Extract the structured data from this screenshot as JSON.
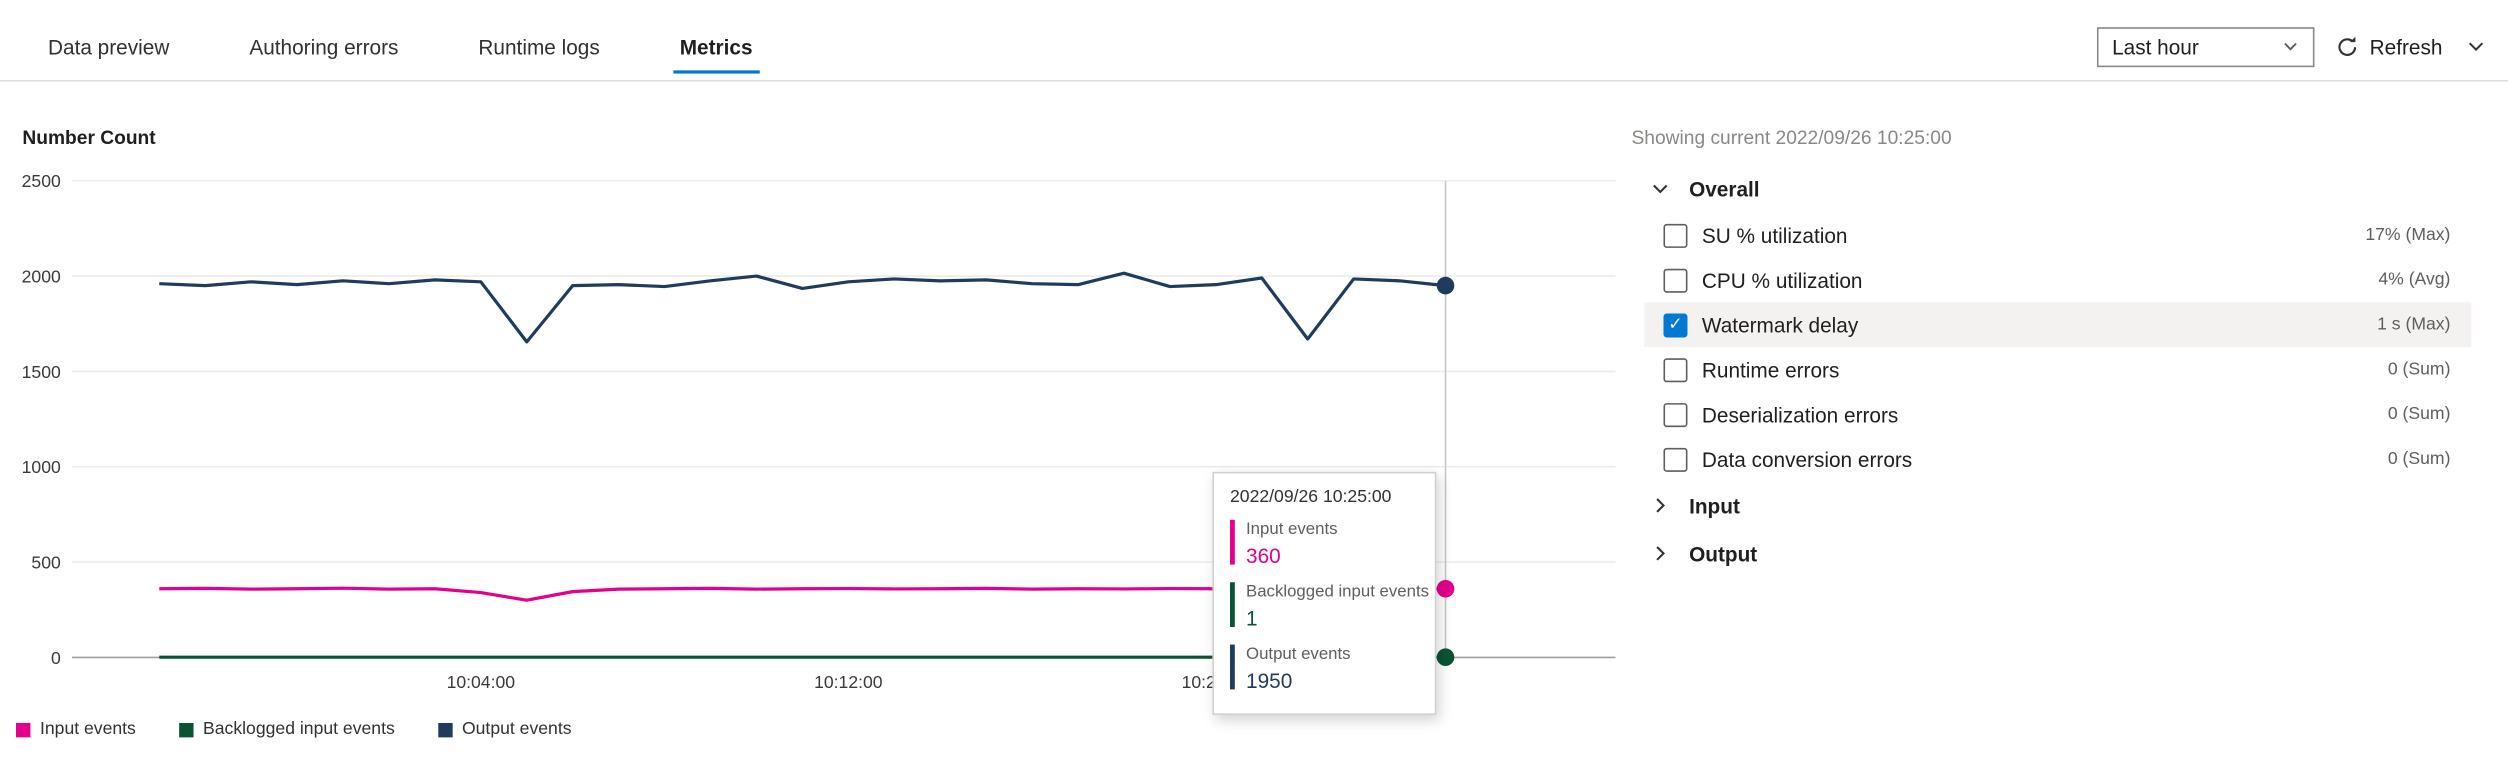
{
  "tabs": [
    {
      "label": "Data preview",
      "active": false
    },
    {
      "label": "Authoring errors",
      "active": false
    },
    {
      "label": "Runtime logs",
      "active": false
    },
    {
      "label": "Metrics",
      "active": true
    }
  ],
  "toolbar": {
    "time_range": "Last hour",
    "refresh_label": "Refresh"
  },
  "chart_data": {
    "type": "line",
    "title": "Number Count",
    "xlabel": "",
    "ylabel": "",
    "ylim": [
      0,
      2500
    ],
    "y_ticks": [
      0,
      500,
      1000,
      1500,
      2000,
      2500
    ],
    "grid": true,
    "legend_position": "bottom-left",
    "x_unit": "minutes-since-midnight",
    "x_window": [
      595.1,
      628.7
    ],
    "x_ticks": [
      {
        "t": 604,
        "label": "10:04:00"
      },
      {
        "t": 612,
        "label": "10:12:00"
      },
      {
        "t": 620,
        "label": "10:20:00"
      }
    ],
    "x": [
      597,
      598,
      599,
      600,
      601,
      602,
      603,
      604,
      605,
      606,
      607,
      608,
      609,
      610,
      611,
      612,
      613,
      614,
      615,
      616,
      617,
      618,
      619,
      620,
      621,
      622,
      623,
      624,
      625
    ],
    "series": [
      {
        "name": "Input events",
        "color": "#e3008c",
        "values": [
          360,
          362,
          358,
          360,
          363,
          358,
          360,
          340,
          300,
          345,
          358,
          360,
          362,
          358,
          360,
          361,
          359,
          360,
          362,
          358,
          360,
          359,
          361,
          360,
          358,
          362,
          360,
          359,
          360
        ]
      },
      {
        "name": "Backlogged input events",
        "color": "#0b5334",
        "values": [
          1,
          1,
          1,
          1,
          1,
          1,
          1,
          1,
          1,
          1,
          1,
          1,
          1,
          1,
          1,
          1,
          1,
          1,
          1,
          1,
          1,
          1,
          1,
          1,
          1,
          1,
          1,
          1,
          1
        ]
      },
      {
        "name": "Output events",
        "color": "#1f3c5f",
        "values": [
          1960,
          1950,
          1970,
          1955,
          1975,
          1960,
          1980,
          1970,
          1655,
          1950,
          1955,
          1945,
          1975,
          2000,
          1935,
          1970,
          1985,
          1975,
          1980,
          1960,
          1955,
          2015,
          1945,
          1955,
          1990,
          1670,
          1985,
          1975,
          1950
        ]
      }
    ],
    "cursor_t": 625
  },
  "tooltip": {
    "timestamp": "2022/09/26 10:25:00",
    "entries": [
      {
        "label": "Input events",
        "value": "360",
        "color": "#e3008c"
      },
      {
        "label": "Backlogged input events",
        "value": "1",
        "color": "#0b5334"
      },
      {
        "label": "Output events",
        "value": "1950",
        "color": "#1f3c5f"
      }
    ]
  },
  "legend": [
    {
      "label": "Input events",
      "color": "#e3008c"
    },
    {
      "label": "Backlogged input events",
      "color": "#0b5334"
    },
    {
      "label": "Output events",
      "color": "#1f3c5f"
    }
  ],
  "panel": {
    "showing_current": "Showing current 2022/09/26 10:25:00",
    "sections": [
      {
        "label": "Overall",
        "expanded": true,
        "metrics": [
          {
            "label": "SU % utilization",
            "value": "17% (Max)",
            "checked": false
          },
          {
            "label": "CPU % utilization",
            "value": "4% (Avg)",
            "checked": false
          },
          {
            "label": "Watermark delay",
            "value": "1 s (Max)",
            "checked": true
          },
          {
            "label": "Runtime errors",
            "value": "0 (Sum)",
            "checked": false
          },
          {
            "label": "Deserialization errors",
            "value": "0 (Sum)",
            "checked": false
          },
          {
            "label": "Data conversion errors",
            "value": "0 (Sum)",
            "checked": false
          }
        ]
      },
      {
        "label": "Input",
        "expanded": false
      },
      {
        "label": "Output",
        "expanded": false
      }
    ]
  }
}
